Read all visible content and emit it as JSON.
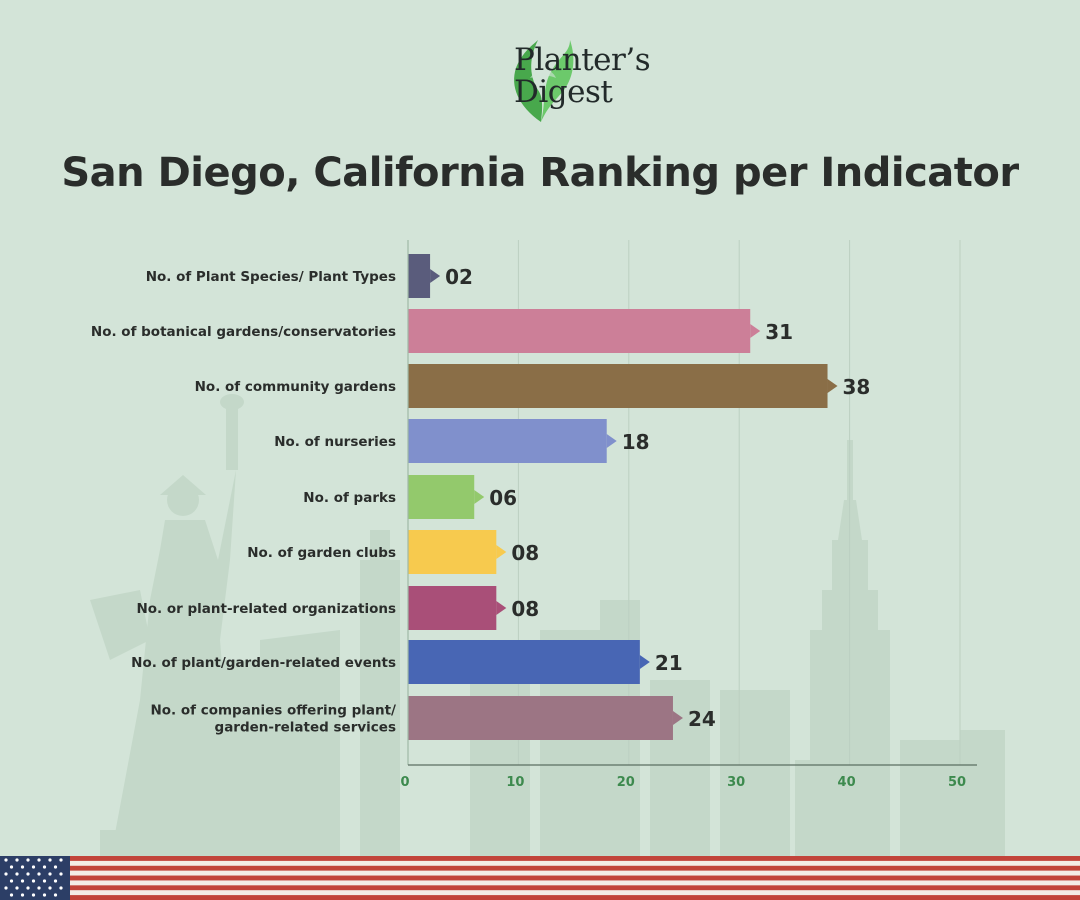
{
  "brand": {
    "line1": "Planter’s",
    "line2": "Digest",
    "logo_icon": "leaf-logo-icon",
    "logo_color": "#4caf50"
  },
  "title": "San Diego, California Ranking per Indicator",
  "chart_data": {
    "type": "bar",
    "orientation": "horizontal",
    "title": "San Diego, California Ranking per Indicator",
    "xlabel": "",
    "ylabel": "",
    "xlim": [
      0,
      50
    ],
    "xticks": [
      0,
      10,
      20,
      30,
      40,
      50
    ],
    "grid": true,
    "categories": [
      [
        "No. of Plant Species/ Plant Types"
      ],
      [
        "No. of botanical gardens/conservatories"
      ],
      [
        "No. of community gardens"
      ],
      [
        "No. of nurseries"
      ],
      [
        "No. of parks"
      ],
      [
        "No. of garden clubs"
      ],
      [
        "No. or plant-related organizations"
      ],
      [
        "No. of plant/garden-related events"
      ],
      [
        "No. of companies offering plant/",
        "garden-related services"
      ]
    ],
    "values": [
      2,
      31,
      38,
      18,
      6,
      8,
      8,
      21,
      24
    ],
    "value_labels": [
      "02",
      "31",
      "38",
      "18",
      "06",
      "08",
      "08",
      "21",
      "24"
    ],
    "colors": [
      "#5a5c7c",
      "#cc7f98",
      "#8a6e47",
      "#8090cc",
      "#93c96c",
      "#f7ca4e",
      "#a94f78",
      "#4866b4",
      "#9c7584"
    ],
    "axis_color": "#3d8a4e"
  },
  "decoration": {
    "background": "#d3e4d8",
    "skyline_color": "#c2d6c7",
    "flag": "us-flag-icon"
  }
}
